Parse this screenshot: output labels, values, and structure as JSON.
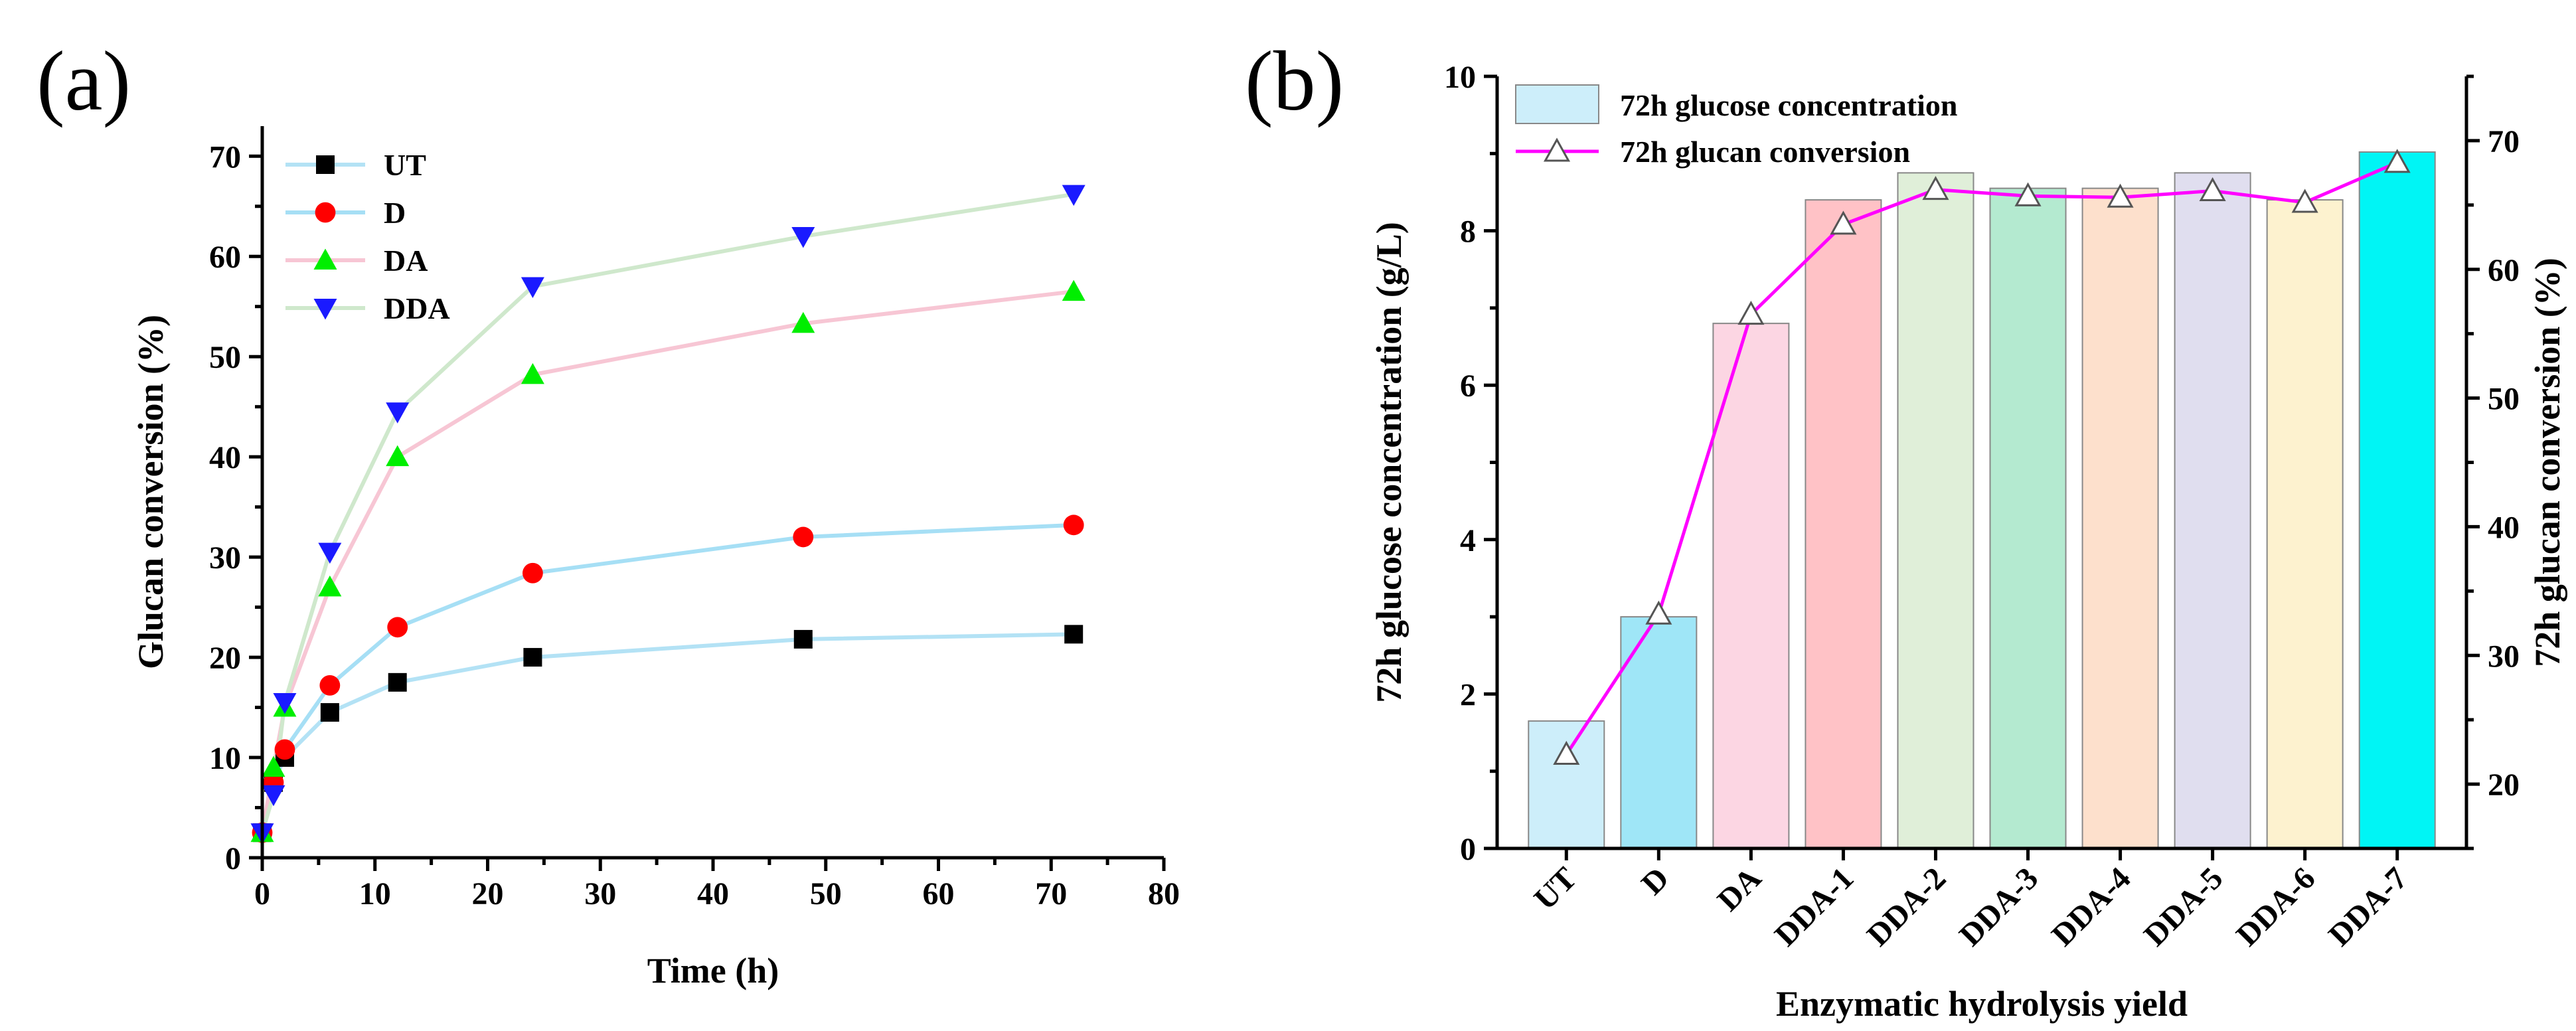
{
  "panel_labels": {
    "a": "(a)",
    "b": "(b)"
  },
  "colors": {
    "UT_line": "#b3e2f5",
    "D_line": "#a6dff5",
    "DA_line": "#f7c6d4",
    "DDA_line": "#cfe8cc",
    "UT_marker": "#000000",
    "D_marker": "#ff0000",
    "DA_marker": "#00ee00",
    "DDA_marker": "#1a1aff",
    "glucan_line": "#ff00ff"
  },
  "chart_data": [
    {
      "type": "line",
      "title": "",
      "xlabel": "Time (h)",
      "ylabel": "Glucan conversion (%)",
      "xlim": [
        0,
        80
      ],
      "ylim": [
        0,
        73
      ],
      "xticks": [
        "0",
        "10",
        "20",
        "30",
        "40",
        "50",
        "60",
        "70",
        "80"
      ],
      "yticks": [
        "0",
        "10",
        "20",
        "30",
        "40",
        "50",
        "60",
        "70"
      ],
      "legend_position": "top-left",
      "x": [
        0,
        1,
        2,
        6,
        12,
        24,
        48,
        72
      ],
      "series": [
        {
          "name": "UT",
          "marker": "square",
          "values": [
            2.5,
            7.5,
            10.0,
            14.5,
            17.5,
            20.0,
            21.8,
            22.3
          ]
        },
        {
          "name": "D",
          "marker": "circle",
          "values": [
            2.5,
            7.5,
            10.8,
            17.2,
            23.0,
            28.4,
            32.0,
            33.2
          ]
        },
        {
          "name": "DA",
          "marker": "triangle-up",
          "values": [
            2.5,
            9.0,
            15.0,
            27.0,
            40.0,
            48.2,
            53.3,
            56.5
          ]
        },
        {
          "name": "DDA",
          "marker": "triangle-down",
          "values": [
            2.5,
            6.3,
            15.5,
            30.5,
            44.5,
            57.0,
            62.0,
            66.2
          ]
        }
      ]
    },
    {
      "type": "bar",
      "title": "",
      "xlabel": "Enzymatic hydrolysis yield",
      "ylabel": "72h glucose concentration (g/L)",
      "y2label": "72h glucan conversion (%)",
      "ylim": [
        0,
        10
      ],
      "y2lim": [
        15,
        75
      ],
      "yticks": [
        "0",
        "2",
        "4",
        "6",
        "8",
        "10"
      ],
      "y2ticks": [
        "20",
        "30",
        "40",
        "50",
        "60",
        "70"
      ],
      "legend_position": "top-left",
      "categories": [
        "UT",
        "D",
        "DA",
        "DDA-1",
        "DDA-2",
        "DDA-3",
        "DDA-4",
        "DDA-5",
        "DDA-6",
        "DDA-7"
      ],
      "series": [
        {
          "name": "72h glucose concentration",
          "type": "bar",
          "axis": "left",
          "values": [
            1.65,
            3.0,
            6.8,
            8.4,
            8.75,
            8.55,
            8.55,
            8.75,
            8.4,
            9.02
          ],
          "colors": [
            "#cdeefa",
            "#9fe6f7",
            "#fcd6e3",
            "#ffc2c6",
            "#e0efd9",
            "#b4ead0",
            "#fde0cc",
            "#e0deef",
            "#fdf2cf",
            "#00f5f5"
          ]
        },
        {
          "name": "72h glucan conversion",
          "type": "line",
          "axis": "right",
          "marker": "triangle-up-open",
          "values": [
            22.3,
            33.2,
            56.5,
            63.5,
            66.2,
            65.7,
            65.6,
            66.1,
            65.2,
            68.3
          ]
        }
      ]
    }
  ]
}
